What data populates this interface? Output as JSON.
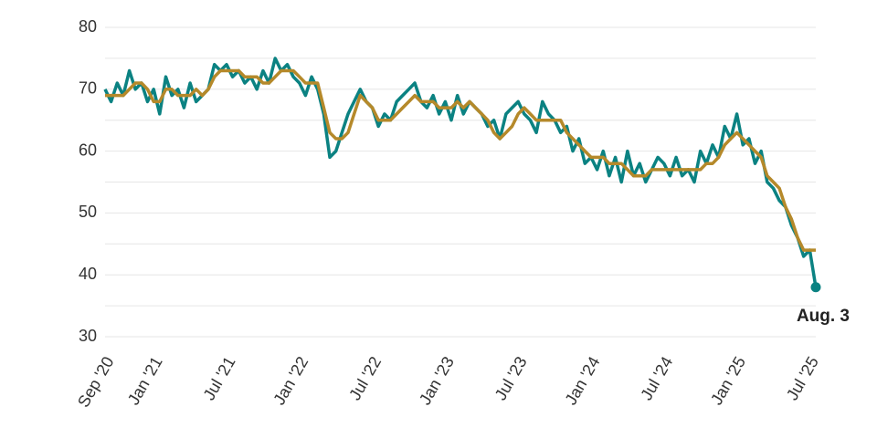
{
  "chart_data": {
    "type": "line",
    "categories": [
      "Sep '20",
      null,
      null,
      null,
      null,
      null,
      null,
      null,
      "Jan '21",
      null,
      null,
      null,
      null,
      null,
      null,
      null,
      null,
      null,
      null,
      null,
      "Jul '21",
      null,
      null,
      null,
      null,
      null,
      null,
      null,
      null,
      null,
      null,
      null,
      "Jan '22",
      null,
      null,
      null,
      null,
      null,
      null,
      null,
      null,
      null,
      null,
      null,
      "Jul '22",
      null,
      null,
      null,
      null,
      null,
      null,
      null,
      null,
      null,
      null,
      null,
      "Jan '23",
      null,
      null,
      null,
      null,
      null,
      null,
      null,
      null,
      null,
      null,
      null,
      "Jul '23",
      null,
      null,
      null,
      null,
      null,
      null,
      null,
      null,
      null,
      null,
      null,
      "Jan '24",
      null,
      null,
      null,
      null,
      null,
      null,
      null,
      null,
      null,
      null,
      null,
      "Jul '24",
      null,
      null,
      null,
      null,
      null,
      null,
      null,
      null,
      null,
      null,
      null,
      "Jan '25",
      null,
      null,
      null,
      null,
      null,
      null,
      null,
      null,
      null,
      null,
      null,
      "Jul '25",
      null
    ],
    "series": [
      {
        "color": "#0b8282",
        "values": [
          70,
          68,
          71,
          69,
          73,
          70,
          71,
          68,
          70,
          66,
          72,
          69,
          70,
          67,
          71,
          68,
          69,
          70,
          74,
          73,
          74,
          72,
          73,
          71,
          72,
          70,
          73,
          71,
          75,
          73,
          74,
          72,
          71,
          69,
          72,
          70,
          66,
          59,
          60,
          63,
          66,
          68,
          70,
          68,
          67,
          64,
          66,
          65,
          68,
          69,
          70,
          71,
          68,
          67,
          69,
          66,
          68,
          65,
          69,
          66,
          68,
          67,
          66,
          64,
          65,
          62,
          66,
          67,
          68,
          66,
          65,
          63,
          68,
          66,
          65,
          63,
          64,
          60,
          62,
          58,
          59,
          57,
          60,
          56,
          59,
          55,
          60,
          56,
          58,
          55,
          57,
          59,
          58,
          56,
          59,
          56,
          57,
          55,
          60,
          58,
          61,
          59,
          64,
          62,
          66,
          61,
          62,
          58,
          60,
          55,
          54,
          52,
          51,
          48,
          46,
          43,
          44,
          38
        ]
      },
      {
        "color": "#b5892a",
        "values": [
          69,
          69,
          69,
          69,
          70,
          71,
          71,
          70,
          68,
          68,
          70,
          70,
          69,
          69,
          69,
          70,
          69,
          70,
          72,
          73,
          73,
          73,
          73,
          72,
          72,
          72,
          71,
          71,
          72,
          73,
          73,
          73,
          72,
          71,
          71,
          71,
          67,
          63,
          62,
          62,
          63,
          66,
          69,
          68,
          67,
          65,
          65,
          65,
          66,
          67,
          68,
          69,
          68,
          68,
          68,
          67,
          67,
          67,
          68,
          67,
          68,
          67,
          66,
          65,
          63,
          62,
          63,
          64,
          66,
          67,
          66,
          65,
          65,
          65,
          65,
          65,
          63,
          62,
          61,
          60,
          59,
          59,
          59,
          58,
          58,
          58,
          57,
          56,
          56,
          56,
          57,
          57,
          57,
          57,
          57,
          57,
          57,
          57,
          57,
          58,
          58,
          59,
          61,
          62,
          63,
          62,
          61,
          60,
          59,
          56,
          55,
          54,
          51,
          49,
          46,
          44,
          44,
          44
        ]
      }
    ],
    "annotation": "Aug. 3",
    "ylim": [
      30,
      80
    ],
    "yticks": [
      30,
      40,
      50,
      60,
      70,
      80
    ],
    "ygrid": [
      35,
      45,
      55,
      65,
      75
    ],
    "grid": true
  }
}
